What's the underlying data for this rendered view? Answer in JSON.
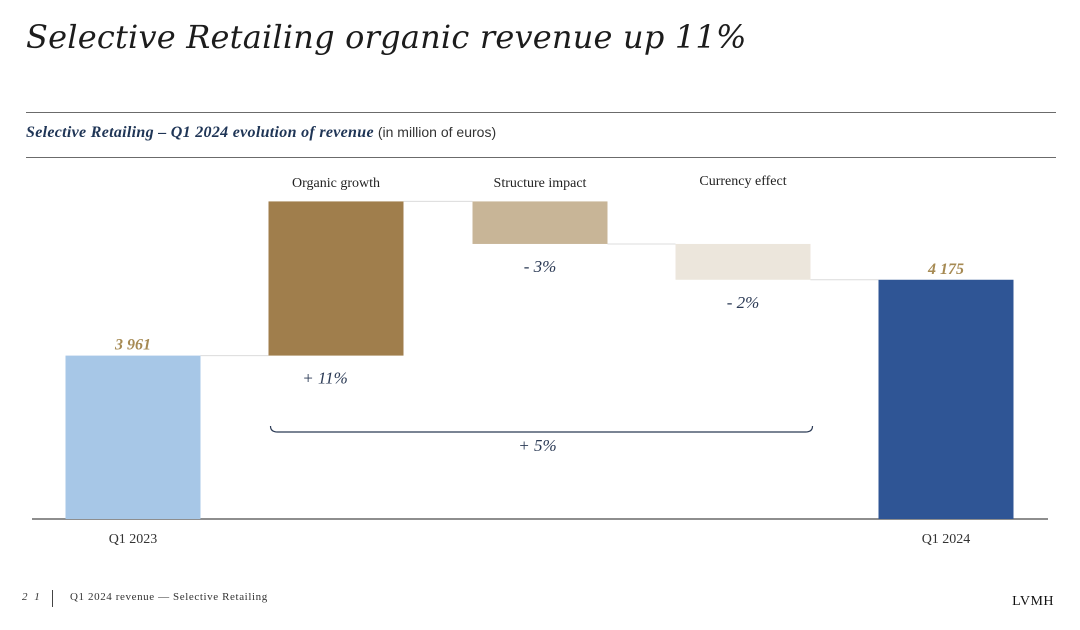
{
  "page": {
    "title": "Selective Retailing organic revenue up 11%",
    "subtitle_bold": "Selective Retailing – Q1 2024 evolution of revenue",
    "subtitle_unit": "(in million of euros)"
  },
  "footer": {
    "page_number": "2 1",
    "text": "Q1 2024 revenue — Selective Retailing",
    "logo": "LVMH"
  },
  "colors": {
    "start_bar": "#a7c7e7",
    "organic": "#a07e4c",
    "structure": "#c8b597",
    "currency": "#ece6dc",
    "end_bar": "#2f5595",
    "value_label": "#a68a53",
    "text": "#2b3a55",
    "axis": "#4a4a4a"
  },
  "chart_data": {
    "type": "waterfall",
    "title": "Selective Retailing – Q1 2024 evolution of revenue",
    "unit": "million of euros",
    "ylim": [
      3500,
      4400
    ],
    "steps": [
      {
        "label": "Q1 2023",
        "kind": "total",
        "value": 3961,
        "value_label": "3 961",
        "label_position": "below"
      },
      {
        "label": "Organic growth",
        "kind": "delta",
        "from": 3961,
        "to": 4396,
        "pct_label": "+ 11%",
        "label_position": "above"
      },
      {
        "label": "Structure impact",
        "kind": "delta",
        "from": 4396,
        "to": 4276,
        "pct_label": "- 3%",
        "label_position": "above"
      },
      {
        "label": "Currency effect",
        "kind": "delta",
        "from": 4276,
        "to": 4175,
        "pct_label": "- 2%",
        "label_position": "above"
      },
      {
        "label": "Q1 2024",
        "kind": "total",
        "value": 4175,
        "value_label": "4 175",
        "label_position": "below"
      }
    ],
    "bracket": {
      "from_step": 1,
      "to_step": 3,
      "label": "+ 5%"
    }
  }
}
